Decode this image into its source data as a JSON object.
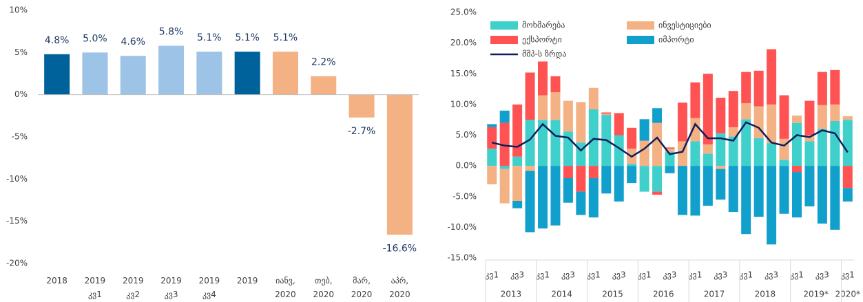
{
  "chart_data": [
    {
      "type": "bar",
      "categories": [
        "2018",
        "2019\nკვ1",
        "2019\nკვ2",
        "2019\nკვ3",
        "2019\nკვ4",
        "2019",
        "იანვ,\n2020",
        "თებ,\n2020",
        "მარ,\n2020",
        "აპრ,\n2020"
      ],
      "values": [
        4.8,
        5.0,
        4.6,
        5.8,
        5.1,
        5.1,
        5.1,
        2.2,
        -2.7,
        -16.6
      ],
      "value_labels": [
        "4.8%",
        "5.0%",
        "4.6%",
        "5.8%",
        "5.1%",
        "5.1%",
        "5.1%",
        "2.2%",
        "-2.7%",
        "-16.6%"
      ],
      "colors": [
        "#00629b",
        "#9dc3e6",
        "#9dc3e6",
        "#9dc3e6",
        "#9dc3e6",
        "#00629b",
        "#f4b183",
        "#f4b183",
        "#f4b183",
        "#f4b183"
      ],
      "ylim": [
        -20,
        10
      ],
      "yticks": [
        {
          "value": -20,
          "label": "-20%"
        },
        {
          "value": -15,
          "label": "-15%"
        },
        {
          "value": -10,
          "label": "-10%"
        },
        {
          "value": -5,
          "label": "-5%"
        },
        {
          "value": 0,
          "label": "0%"
        },
        {
          "value": 5,
          "label": "5%"
        },
        {
          "value": 10,
          "label": "10%"
        }
      ],
      "grid": false
    },
    {
      "type": "stacked_bar",
      "categories": [
        "კვ1",
        null,
        "კვ3",
        null,
        "კვ1",
        null,
        "კვ3",
        null,
        "კვ1",
        null,
        "კვ3",
        null,
        "კვ1",
        null,
        "კვ3",
        null,
        "კვ1",
        null,
        "კვ3",
        null,
        "კვ1",
        null,
        "კვ3",
        null,
        "კვ1",
        null,
        "კვ3",
        null,
        "კვ1"
      ],
      "groups": [
        "2013",
        "2014",
        "2015",
        "2016",
        "2017",
        "2018",
        "2019*",
        "2020*"
      ],
      "series": [
        {
          "name": "მოხმარება",
          "color": "#3fd0cc",
          "values": [
            2.8,
            -0.5,
            1.5,
            7.5,
            7.5,
            7.5,
            5.6,
            3.8,
            9.2,
            8.3,
            5.0,
            0.3,
            -4.2,
            -4.2,
            2.3,
            0,
            4.0,
            2.0,
            5.3,
            4.8,
            7.6,
            4.5,
            3.7,
            1.0,
            7.0,
            4.0,
            6.0,
            7.3,
            7.5
          ]
        },
        {
          "name": "ინვესტიციები",
          "color": "#f4b183",
          "values": [
            -3.0,
            -5.6,
            -5.7,
            -0.8,
            4.0,
            4.5,
            5.0,
            6.6,
            3.5,
            0.2,
            0,
            2.5,
            4.1,
            7.0,
            0.5,
            4.0,
            3.8,
            1.5,
            -0.5,
            1.5,
            2.6,
            5.2,
            6.3,
            3.4,
            1.2,
            1.0,
            3.9,
            2.7,
            0.6
          ]
        },
        {
          "name": "ექსპორტი",
          "color": "#ff5252",
          "values": [
            3.5,
            7.0,
            8.5,
            7.7,
            5.5,
            2.6,
            -2.0,
            -4.2,
            -2.0,
            0.2,
            3.6,
            3.4,
            0,
            -0.5,
            0.2,
            6.3,
            5.8,
            11.5,
            5.8,
            5.9,
            5.1,
            5.8,
            9.0,
            7.1,
            -1.0,
            5.6,
            5.4,
            5.6,
            -3.6
          ]
        },
        {
          "name": "იმპორტი",
          "color": "#119fcb",
          "values": [
            0.5,
            2.0,
            -1.2,
            -10.0,
            -10.2,
            -9.7,
            -4.0,
            -3.8,
            -6.4,
            -4.5,
            -5.8,
            -2.8,
            3.5,
            2.4,
            -1.2,
            -8.0,
            -8.1,
            -6.5,
            -5.0,
            -7.5,
            -11.1,
            -8.3,
            -12.8,
            -7.8,
            -7.4,
            -6.6,
            -9.4,
            -10.4,
            -2.2
          ]
        },
        {
          "name": "მშპ-ს ზრდა",
          "type": "line",
          "color": "#0d1f5c",
          "values": [
            3.8,
            3.3,
            3.1,
            4.3,
            6.8,
            4.9,
            4.6,
            2.5,
            4.4,
            4.2,
            2.9,
            1.5,
            2.8,
            4.6,
            1.9,
            2.3,
            6.8,
            4.5,
            4.5,
            4.1,
            7.1,
            6.2,
            3.8,
            3.3,
            5.0,
            4.7,
            5.8,
            5.3,
            2.2
          ]
        }
      ],
      "ylim": [
        -15,
        25
      ],
      "yticks": [
        {
          "value": -15,
          "label": "-15.0%"
        },
        {
          "value": -10,
          "label": "-10.0%"
        },
        {
          "value": -5,
          "label": "-5.0%"
        },
        {
          "value": 0,
          "label": "0.0%"
        },
        {
          "value": 5,
          "label": "5.0%"
        },
        {
          "value": 10,
          "label": "10.0%"
        },
        {
          "value": 15,
          "label": "15.0%"
        },
        {
          "value": 20,
          "label": "20.0%"
        },
        {
          "value": 25,
          "label": "25.0%"
        }
      ],
      "grid": false
    }
  ]
}
